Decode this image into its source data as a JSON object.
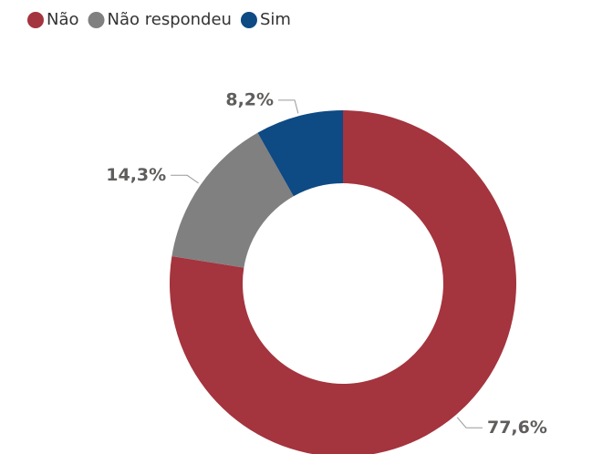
{
  "chart_data": {
    "type": "donut",
    "categories": [
      "Não",
      "Não respondeu",
      "Sim"
    ],
    "values": [
      77.6,
      14.3,
      8.2
    ],
    "value_labels": [
      "77,6%",
      "14,3%",
      "8,2%"
    ],
    "colors": [
      "#a4343e",
      "#808080",
      "#0e4a84"
    ],
    "legend": "top-left"
  }
}
